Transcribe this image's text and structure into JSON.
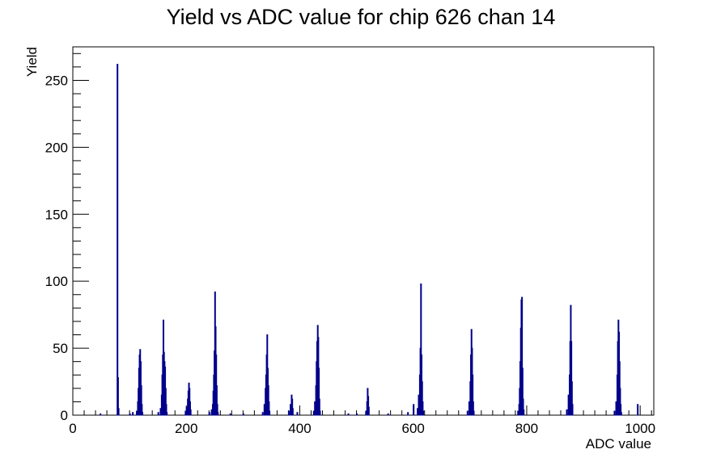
{
  "chart_data": {
    "type": "histogram",
    "title": "Yield vs ADC value for chip 626 chan 14",
    "xlabel": "ADC value",
    "ylabel": "Yield",
    "xlim": [
      0,
      1024
    ],
    "ylim": [
      0,
      275
    ],
    "x_ticks": [
      0,
      200,
      400,
      600,
      800,
      1000
    ],
    "x_tick_labels": [
      "0",
      "200",
      "400",
      "600",
      "800",
      "1000"
    ],
    "y_ticks": [
      0,
      50,
      100,
      150,
      200,
      250
    ],
    "y_tick_labels": [
      "0",
      "50",
      "100",
      "150",
      "200",
      "250"
    ],
    "line_color": "#00008b",
    "grid": false,
    "legend": "none",
    "bins": [
      [
        48,
        1
      ],
      [
        78,
        262
      ],
      [
        79,
        28
      ],
      [
        80,
        5
      ],
      [
        100,
        1
      ],
      [
        105,
        2
      ],
      [
        112,
        3
      ],
      [
        114,
        10
      ],
      [
        115,
        20
      ],
      [
        116,
        35
      ],
      [
        117,
        45
      ],
      [
        118,
        49
      ],
      [
        119,
        40
      ],
      [
        120,
        22
      ],
      [
        121,
        8
      ],
      [
        122,
        2
      ],
      [
        150,
        2
      ],
      [
        154,
        5
      ],
      [
        156,
        15
      ],
      [
        157,
        30
      ],
      [
        158,
        45
      ],
      [
        159,
        71
      ],
      [
        160,
        47
      ],
      [
        161,
        40
      ],
      [
        162,
        36
      ],
      [
        163,
        20
      ],
      [
        164,
        8
      ],
      [
        165,
        2
      ],
      [
        198,
        3
      ],
      [
        200,
        6
      ],
      [
        202,
        12
      ],
      [
        203,
        18
      ],
      [
        204,
        24
      ],
      [
        205,
        20
      ],
      [
        206,
        10
      ],
      [
        207,
        4
      ],
      [
        240,
        2
      ],
      [
        244,
        4
      ],
      [
        246,
        8
      ],
      [
        247,
        18
      ],
      [
        248,
        30
      ],
      [
        249,
        48
      ],
      [
        250,
        92
      ],
      [
        251,
        66
      ],
      [
        252,
        45
      ],
      [
        253,
        22
      ],
      [
        254,
        8
      ],
      [
        255,
        2
      ],
      [
        277,
        1
      ],
      [
        300,
        1
      ],
      [
        334,
        2
      ],
      [
        337,
        8
      ],
      [
        339,
        20
      ],
      [
        340,
        30
      ],
      [
        341,
        45
      ],
      [
        342,
        60
      ],
      [
        343,
        35
      ],
      [
        344,
        22
      ],
      [
        345,
        10
      ],
      [
        346,
        3
      ],
      [
        380,
        3
      ],
      [
        383,
        8
      ],
      [
        385,
        15
      ],
      [
        386,
        12
      ],
      [
        387,
        5
      ],
      [
        395,
        2
      ],
      [
        424,
        3
      ],
      [
        426,
        10
      ],
      [
        428,
        22
      ],
      [
        429,
        40
      ],
      [
        430,
        55
      ],
      [
        431,
        67
      ],
      [
        432,
        58
      ],
      [
        433,
        35
      ],
      [
        434,
        12
      ],
      [
        435,
        3
      ],
      [
        485,
        1
      ],
      [
        500,
        1
      ],
      [
        516,
        3
      ],
      [
        518,
        10
      ],
      [
        519,
        20
      ],
      [
        520,
        14
      ],
      [
        521,
        6
      ],
      [
        555,
        1
      ],
      [
        590,
        2
      ],
      [
        600,
        8
      ],
      [
        607,
        5
      ],
      [
        609,
        15
      ],
      [
        611,
        30
      ],
      [
        612,
        50
      ],
      [
        613,
        98
      ],
      [
        614,
        45
      ],
      [
        615,
        25
      ],
      [
        616,
        10
      ],
      [
        617,
        3
      ],
      [
        695,
        3
      ],
      [
        698,
        10
      ],
      [
        700,
        25
      ],
      [
        701,
        45
      ],
      [
        702,
        64
      ],
      [
        703,
        50
      ],
      [
        704,
        30
      ],
      [
        705,
        10
      ],
      [
        706,
        3
      ],
      [
        784,
        3
      ],
      [
        786,
        8
      ],
      [
        787,
        20
      ],
      [
        788,
        40
      ],
      [
        789,
        65
      ],
      [
        790,
        86
      ],
      [
        791,
        88
      ],
      [
        792,
        35
      ],
      [
        793,
        12
      ],
      [
        794,
        4
      ],
      [
        870,
        4
      ],
      [
        873,
        15
      ],
      [
        875,
        30
      ],
      [
        876,
        55
      ],
      [
        877,
        82
      ],
      [
        878,
        55
      ],
      [
        879,
        25
      ],
      [
        880,
        8
      ],
      [
        954,
        3
      ],
      [
        957,
        10
      ],
      [
        959,
        30
      ],
      [
        960,
        55
      ],
      [
        961,
        71
      ],
      [
        962,
        62
      ],
      [
        963,
        40
      ],
      [
        964,
        20
      ],
      [
        965,
        8
      ],
      [
        966,
        2
      ],
      [
        995,
        8
      ]
    ]
  }
}
